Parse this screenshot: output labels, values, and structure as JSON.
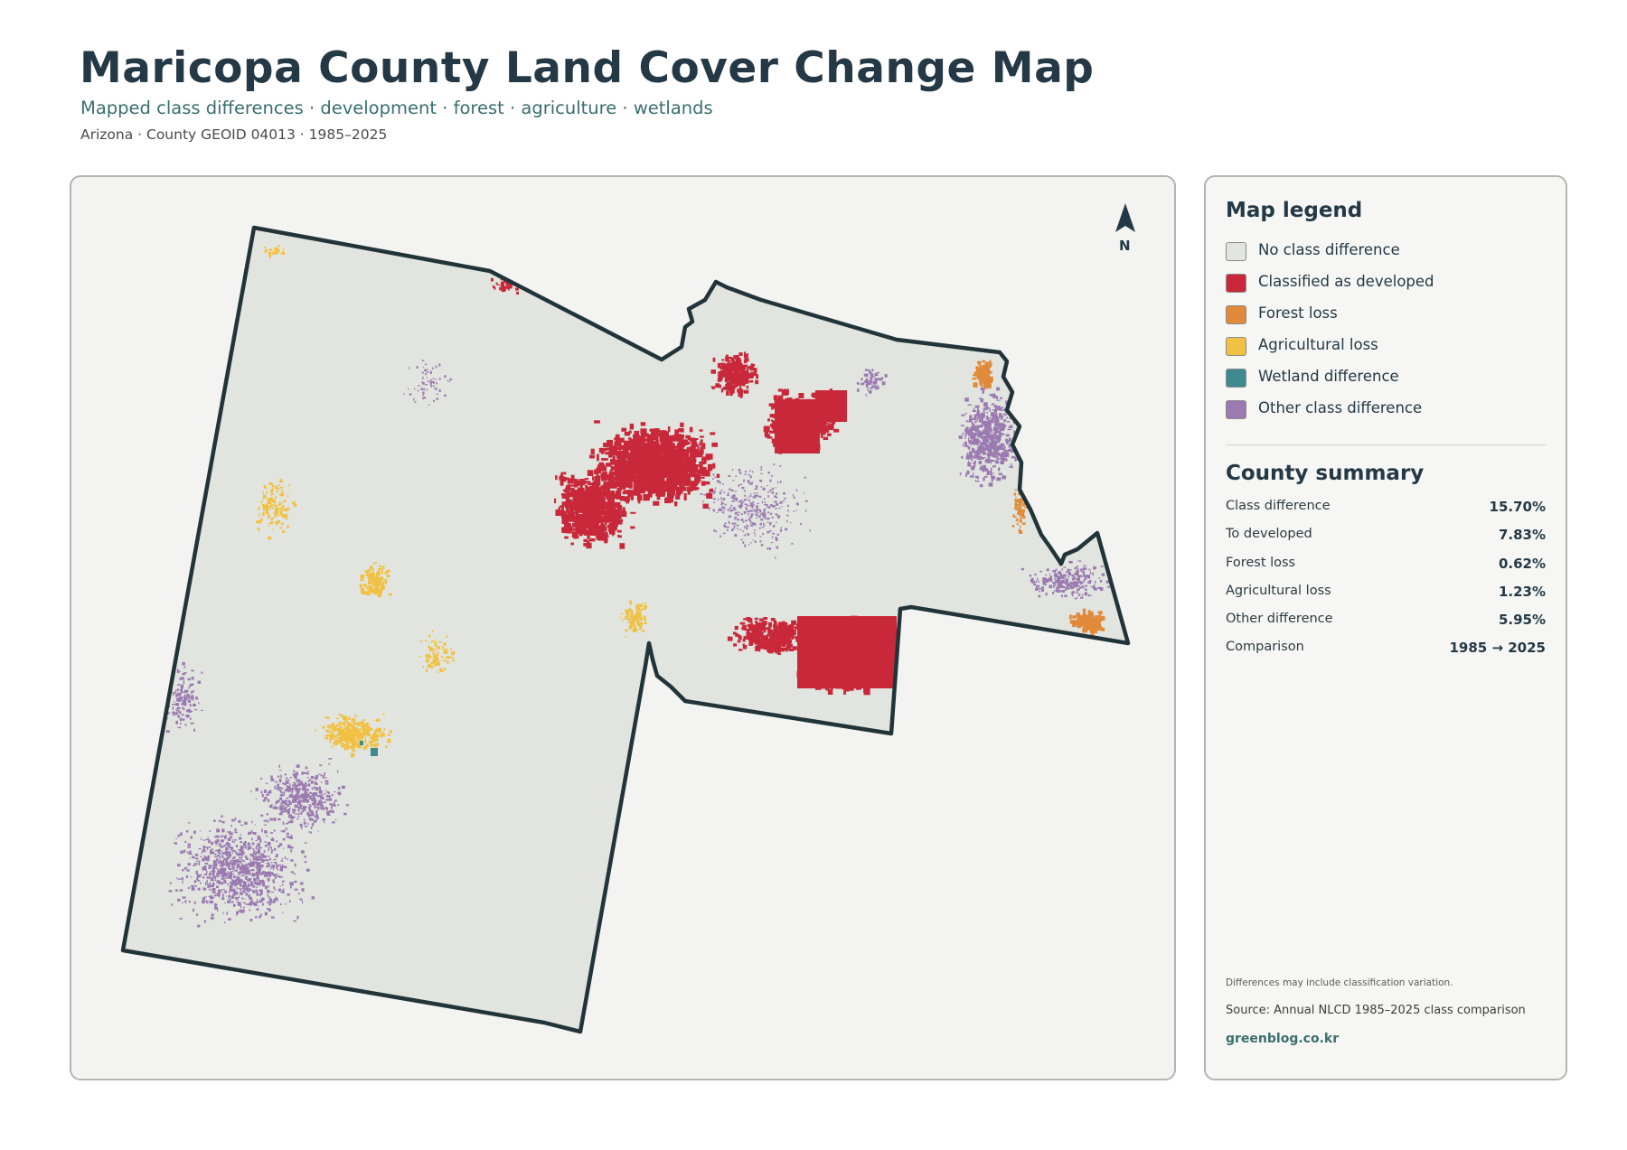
{
  "header": {
    "title": "Maricopa County Land Cover Change Map",
    "subtitle": "Mapped class differences · development · forest · agriculture · wetlands",
    "meta": "Arizona · County GEOID 04013 · 1985–2025"
  },
  "map": {
    "north_label": "N",
    "colors": {
      "background": "#e2e4df",
      "boundary": "#22343a",
      "developed": "#c8283a",
      "forest": "#e08a3a",
      "agriculture": "#f0c142",
      "wetland": "#3f8a8e",
      "other": "#9a7ab0"
    }
  },
  "legend": {
    "title": "Map legend",
    "items": [
      {
        "label": "No class difference",
        "color": "#e2e4df"
      },
      {
        "label": "Classified as developed",
        "color": "#c8283a"
      },
      {
        "label": "Forest loss",
        "color": "#e08a3a"
      },
      {
        "label": "Agricultural loss",
        "color": "#f0c142"
      },
      {
        "label": "Wetland difference",
        "color": "#3f8a8e"
      },
      {
        "label": "Other class difference",
        "color": "#9a7ab0"
      }
    ]
  },
  "summary": {
    "title": "County summary",
    "rows": [
      {
        "key": "Class difference",
        "value": "15.70%"
      },
      {
        "key": "To developed",
        "value": "7.83%"
      },
      {
        "key": "Forest loss",
        "value": "0.62%"
      },
      {
        "key": "Agricultural loss",
        "value": "1.23%"
      },
      {
        "key": "Other difference",
        "value": "5.95%"
      },
      {
        "key": "Comparison",
        "value": "1985 → 2025"
      }
    ]
  },
  "footer": {
    "note": "Differences may include classification variation.",
    "source": "Source: Annual NLCD 1985–2025 class comparison",
    "site": "greenblog.co.kr"
  }
}
